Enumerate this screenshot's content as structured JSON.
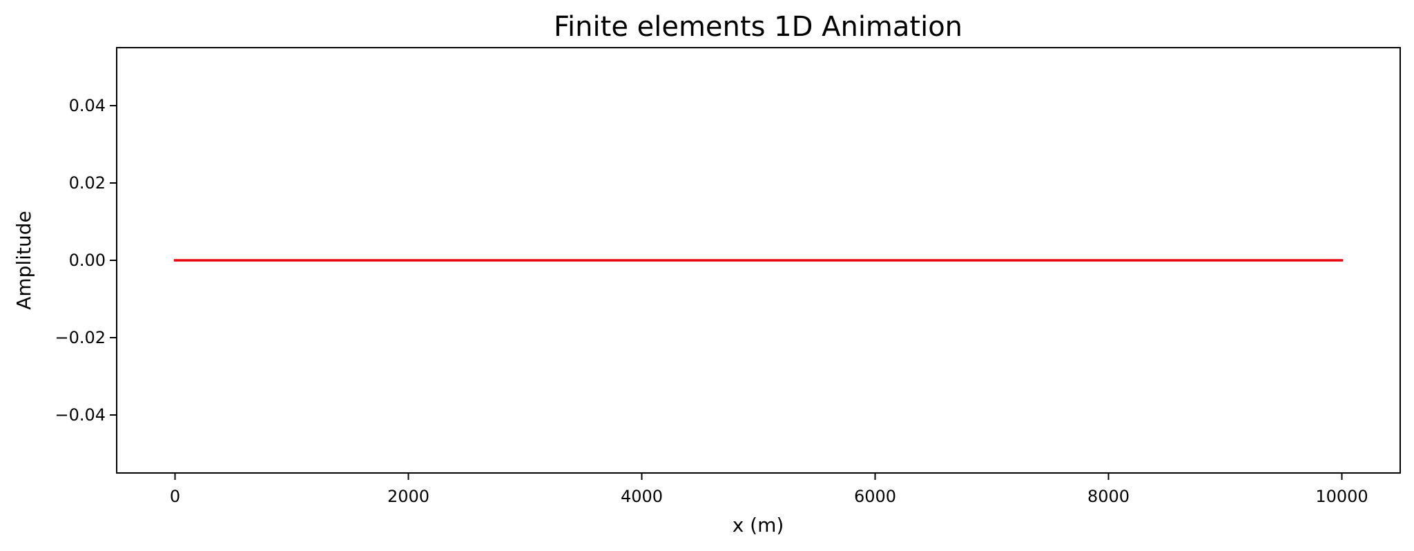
{
  "chart_data": {
    "type": "line",
    "title": "Finite elements 1D Animation",
    "xlabel": "x (m)",
    "ylabel": "Amplitude",
    "xlim": [
      -500,
      10500
    ],
    "ylim": [
      -0.055,
      0.055
    ],
    "xticks": [
      0,
      2000,
      4000,
      6000,
      8000,
      10000
    ],
    "xtick_labels": [
      "0",
      "2000",
      "4000",
      "6000",
      "8000",
      "10000"
    ],
    "yticks": [
      -0.04,
      -0.02,
      0.0,
      0.02,
      0.04
    ],
    "ytick_labels": [
      "−0.04",
      "−0.02",
      "0.00",
      "0.02",
      "0.04"
    ],
    "grid": false,
    "series": [
      {
        "color": "#e8000b",
        "x": [
          0,
          10000
        ],
        "y": [
          0.0,
          0.0
        ]
      }
    ]
  }
}
